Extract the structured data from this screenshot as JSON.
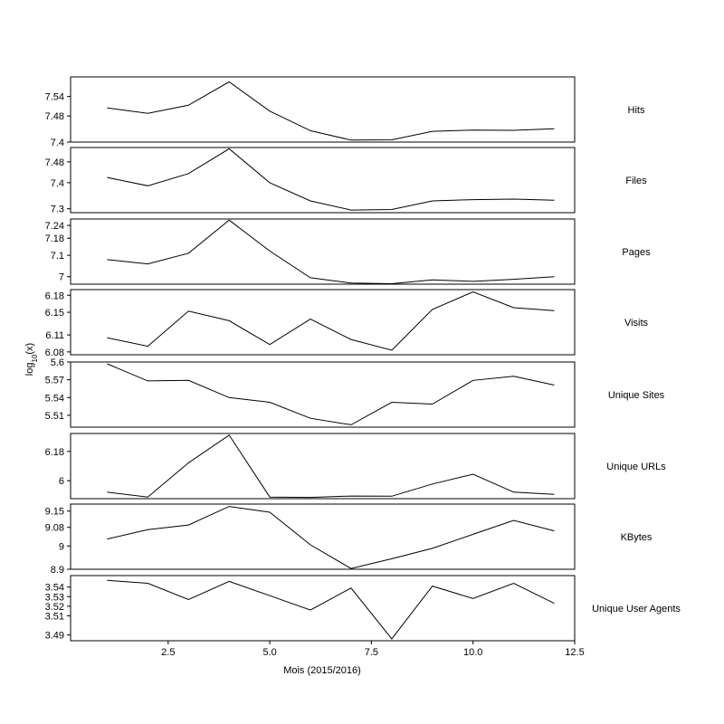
{
  "chart_data": {
    "type": "line",
    "xlabel": "Mois (2015/2016)",
    "ylabel": "log10(x)",
    "ylabel_base": "log",
    "ylabel_sub": "10",
    "ylabel_rest": "(x)",
    "x": [
      1,
      2,
      3,
      4,
      5,
      6,
      7,
      8,
      9,
      10,
      11,
      12
    ],
    "xlim": [
      0.1,
      12.5
    ],
    "xticks": [
      2.5,
      5.0,
      7.5,
      10.0,
      12.5
    ],
    "xtick_labels": [
      "2.5",
      "5.0",
      "7.5",
      "10.0",
      "12.5"
    ],
    "panels": [
      {
        "name": "Hits",
        "ylim": [
          7.4,
          7.6
        ],
        "yticks": [
          7.4,
          7.48,
          7.54
        ],
        "ytick_labels": [
          "7.4",
          "7.48",
          "7.54"
        ],
        "values": [
          7.505,
          7.488,
          7.513,
          7.585,
          7.495,
          7.435,
          7.406,
          7.407,
          7.433,
          7.437,
          7.436,
          7.441
        ]
      },
      {
        "name": "Files",
        "ylim": [
          7.285,
          7.535
        ],
        "yticks": [
          7.3,
          7.4,
          7.48
        ],
        "ytick_labels": [
          "7.3",
          "7.4",
          "7.48"
        ],
        "values": [
          7.42,
          7.388,
          7.435,
          7.53,
          7.4,
          7.33,
          7.295,
          7.297,
          7.33,
          7.335,
          7.337,
          7.333
        ]
      },
      {
        "name": "Pages",
        "ylim": [
          6.965,
          7.27
        ],
        "yticks": [
          7.0,
          7.1,
          7.18,
          7.24
        ],
        "ytick_labels": [
          "7",
          "7.1",
          "7.18",
          "7.24"
        ],
        "values": [
          7.08,
          7.06,
          7.11,
          7.265,
          7.12,
          6.995,
          6.97,
          6.967,
          6.985,
          6.978,
          6.988,
          7.0
        ]
      },
      {
        "name": "Visits",
        "ylim": [
          6.075,
          6.19
        ],
        "yticks": [
          6.08,
          6.11,
          6.15,
          6.18
        ],
        "ytick_labels": [
          "6.08",
          "6.11",
          "6.15",
          "6.18"
        ],
        "values": [
          6.105,
          6.09,
          6.152,
          6.135,
          6.093,
          6.138,
          6.102,
          6.083,
          6.155,
          6.186,
          6.158,
          6.153
        ]
      },
      {
        "name": "Unique Sites",
        "ylim": [
          5.49,
          5.6
        ],
        "yticks": [
          5.51,
          5.54,
          5.57,
          5.6
        ],
        "ytick_labels": [
          "5.51",
          "5.54",
          "5.57",
          "5.6"
        ],
        "values": [
          5.597,
          5.568,
          5.569,
          5.54,
          5.532,
          5.505,
          5.494,
          5.532,
          5.529,
          5.569,
          5.576,
          5.561
        ]
      },
      {
        "name": "Unique URLs",
        "ylim": [
          5.89,
          6.29
        ],
        "yticks": [
          6.0,
          6.18
        ],
        "ytick_labels": [
          "6",
          "6.18"
        ],
        "values": [
          5.93,
          5.9,
          6.11,
          6.28,
          5.9,
          5.898,
          5.906,
          5.905,
          5.98,
          6.04,
          5.93,
          5.916
        ]
      },
      {
        "name": "KBytes",
        "ylim": [
          8.9,
          9.18
        ],
        "yticks": [
          8.9,
          9.0,
          9.08,
          9.15
        ],
        "ytick_labels": [
          "8.9",
          "9",
          "9.08",
          "9.15"
        ],
        "values": [
          9.03,
          9.07,
          9.09,
          9.17,
          9.145,
          9.005,
          8.903,
          8.945,
          8.99,
          9.05,
          9.11,
          9.065
        ]
      },
      {
        "name": "Unique User Agents",
        "ylim": [
          3.484,
          3.552
        ],
        "yticks": [
          3.49,
          3.51,
          3.52,
          3.53,
          3.54
        ],
        "ytick_labels": [
          "3.49",
          "3.51",
          "3.52",
          "3.53",
          "3.54"
        ],
        "values": [
          3.547,
          3.544,
          3.527,
          3.546,
          3.531,
          3.516,
          3.539,
          3.486,
          3.541,
          3.528,
          3.544,
          3.523
        ]
      }
    ]
  }
}
